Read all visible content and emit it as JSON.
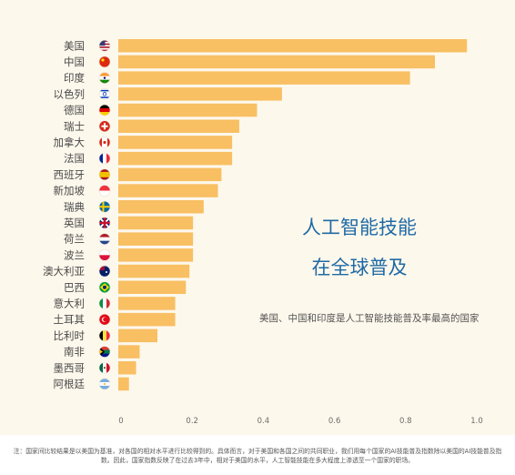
{
  "chart_data": {
    "type": "bar",
    "orientation": "horizontal",
    "categories": [
      "美国",
      "中国",
      "印度",
      "以色列",
      "德国",
      "瑞士",
      "加拿大",
      "法国",
      "西班牙",
      "新加坡",
      "瑞典",
      "英国",
      "荷兰",
      "波兰",
      "澳大利亚",
      "巴西",
      "意大利",
      "土耳其",
      "比利时",
      "南非",
      "墨西哥",
      "阿根廷"
    ],
    "values": [
      0.98,
      0.89,
      0.82,
      0.46,
      0.39,
      0.34,
      0.32,
      0.32,
      0.29,
      0.28,
      0.24,
      0.21,
      0.21,
      0.21,
      0.2,
      0.19,
      0.16,
      0.16,
      0.11,
      0.06,
      0.05,
      0.03
    ],
    "xlim": [
      0,
      1.0
    ],
    "xticks": [
      "0",
      "0.2",
      "0.4",
      "0.6",
      "0.8",
      "1.0"
    ],
    "bar_color": "#f8bf63",
    "grid": false,
    "title": "",
    "xlabel": "",
    "ylabel": ""
  },
  "flags": [
    "us-flag-icon",
    "china-flag-icon",
    "india-flag-icon",
    "israel-flag-icon",
    "germany-flag-icon",
    "switzerland-flag-icon",
    "canada-flag-icon",
    "france-flag-icon",
    "spain-flag-icon",
    "singapore-flag-icon",
    "sweden-flag-icon",
    "uk-flag-icon",
    "netherlands-flag-icon",
    "poland-flag-icon",
    "australia-flag-icon",
    "brazil-flag-icon",
    "italy-flag-icon",
    "turkey-flag-icon",
    "belgium-flag-icon",
    "south-africa-flag-icon",
    "mexico-flag-icon",
    "argentina-flag-icon"
  ],
  "headline": {
    "line1": "人工智能技能",
    "line2": "在全球普及"
  },
  "subtext": "美国、中国和印度是人工智能技能普及率最高的国家",
  "footnote": "注：国家间比较结果是以美国为基准，对各国的相对水平进行比较得到的。具体而言，对于美国和各国之间的共同职业，我们用每个国家的AI技能普及指数除以美国的AI技能普及指数。因此，国家指数反映了在过去3年中，相对于美国的水平，人工智能技能在多大程度上渗透至一个国家的职场。",
  "colors": {
    "background": "#fdf8ec",
    "bar": "#f8bf63",
    "headline": "#1f6aa5",
    "text": "#4a4a4a"
  }
}
